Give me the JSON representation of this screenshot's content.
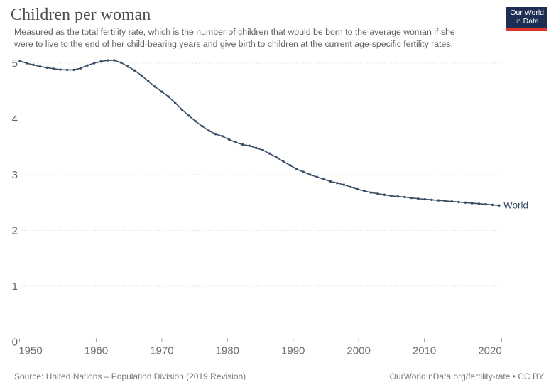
{
  "logo": {
    "line1": "Our World",
    "line2": "in Data",
    "bg_color": "#1c2e54",
    "accent_color": "#dc3627"
  },
  "header": {
    "title": "Children per woman",
    "subtitle_line1": "Measured as the total fertility rate, which is the number of children that would be born to the average woman if she",
    "subtitle_line2": "were to live to the end of her child-bearing years and give birth to children at the current age-specific fertility rates."
  },
  "footer": {
    "source": "Source: United Nations – Population Division (2019 Revision)",
    "rights": "OurWorldInData.org/fertility-rate • CC BY"
  },
  "chart_data": {
    "type": "line",
    "title": "Children per woman",
    "xlabel": "",
    "ylabel": "",
    "xlim": [
      1950,
      2021
    ],
    "ylim": [
      0,
      5.3
    ],
    "x_ticks": [
      1950,
      1960,
      1970,
      1980,
      1990,
      2000,
      2010,
      2020
    ],
    "y_ticks": [
      0,
      1,
      2,
      3,
      4,
      5
    ],
    "grid": "dotted-horizontal",
    "legend_position": "end-of-line",
    "series": [
      {
        "name": "World",
        "color": "#384d66",
        "x": [
          1950,
          1951,
          1952,
          1953,
          1954,
          1955,
          1956,
          1957,
          1958,
          1959,
          1960,
          1961,
          1962,
          1963,
          1964,
          1965,
          1966,
          1967,
          1968,
          1969,
          1970,
          1971,
          1972,
          1973,
          1974,
          1975,
          1976,
          1977,
          1978,
          1979,
          1980,
          1981,
          1982,
          1983,
          1984,
          1985,
          1986,
          1987,
          1988,
          1989,
          1990,
          1991,
          1992,
          1993,
          1994,
          1995,
          1996,
          1997,
          1998,
          1999,
          2000,
          2001,
          2002,
          2003,
          2004,
          2005,
          2006,
          2007,
          2008,
          2009,
          2010,
          2011,
          2012,
          2013,
          2014,
          2015,
          2016,
          2017,
          2018,
          2019,
          2020,
          2021
        ],
        "values": [
          5.04,
          5.0,
          4.97,
          4.94,
          4.92,
          4.9,
          4.885,
          4.88,
          4.88,
          4.91,
          4.96,
          5.0,
          5.03,
          5.05,
          5.05,
          5.01,
          4.94,
          4.87,
          4.78,
          4.68,
          4.58,
          4.49,
          4.4,
          4.29,
          4.17,
          4.06,
          3.96,
          3.87,
          3.79,
          3.73,
          3.69,
          3.63,
          3.58,
          3.54,
          3.52,
          3.48,
          3.44,
          3.38,
          3.31,
          3.24,
          3.17,
          3.1,
          3.05,
          3.0,
          2.96,
          2.92,
          2.88,
          2.85,
          2.82,
          2.78,
          2.74,
          2.71,
          2.68,
          2.66,
          2.64,
          2.62,
          2.61,
          2.6,
          2.585,
          2.57,
          2.56,
          2.55,
          2.54,
          2.53,
          2.52,
          2.51,
          2.5,
          2.49,
          2.48,
          2.47,
          2.46,
          2.45
        ]
      }
    ]
  }
}
